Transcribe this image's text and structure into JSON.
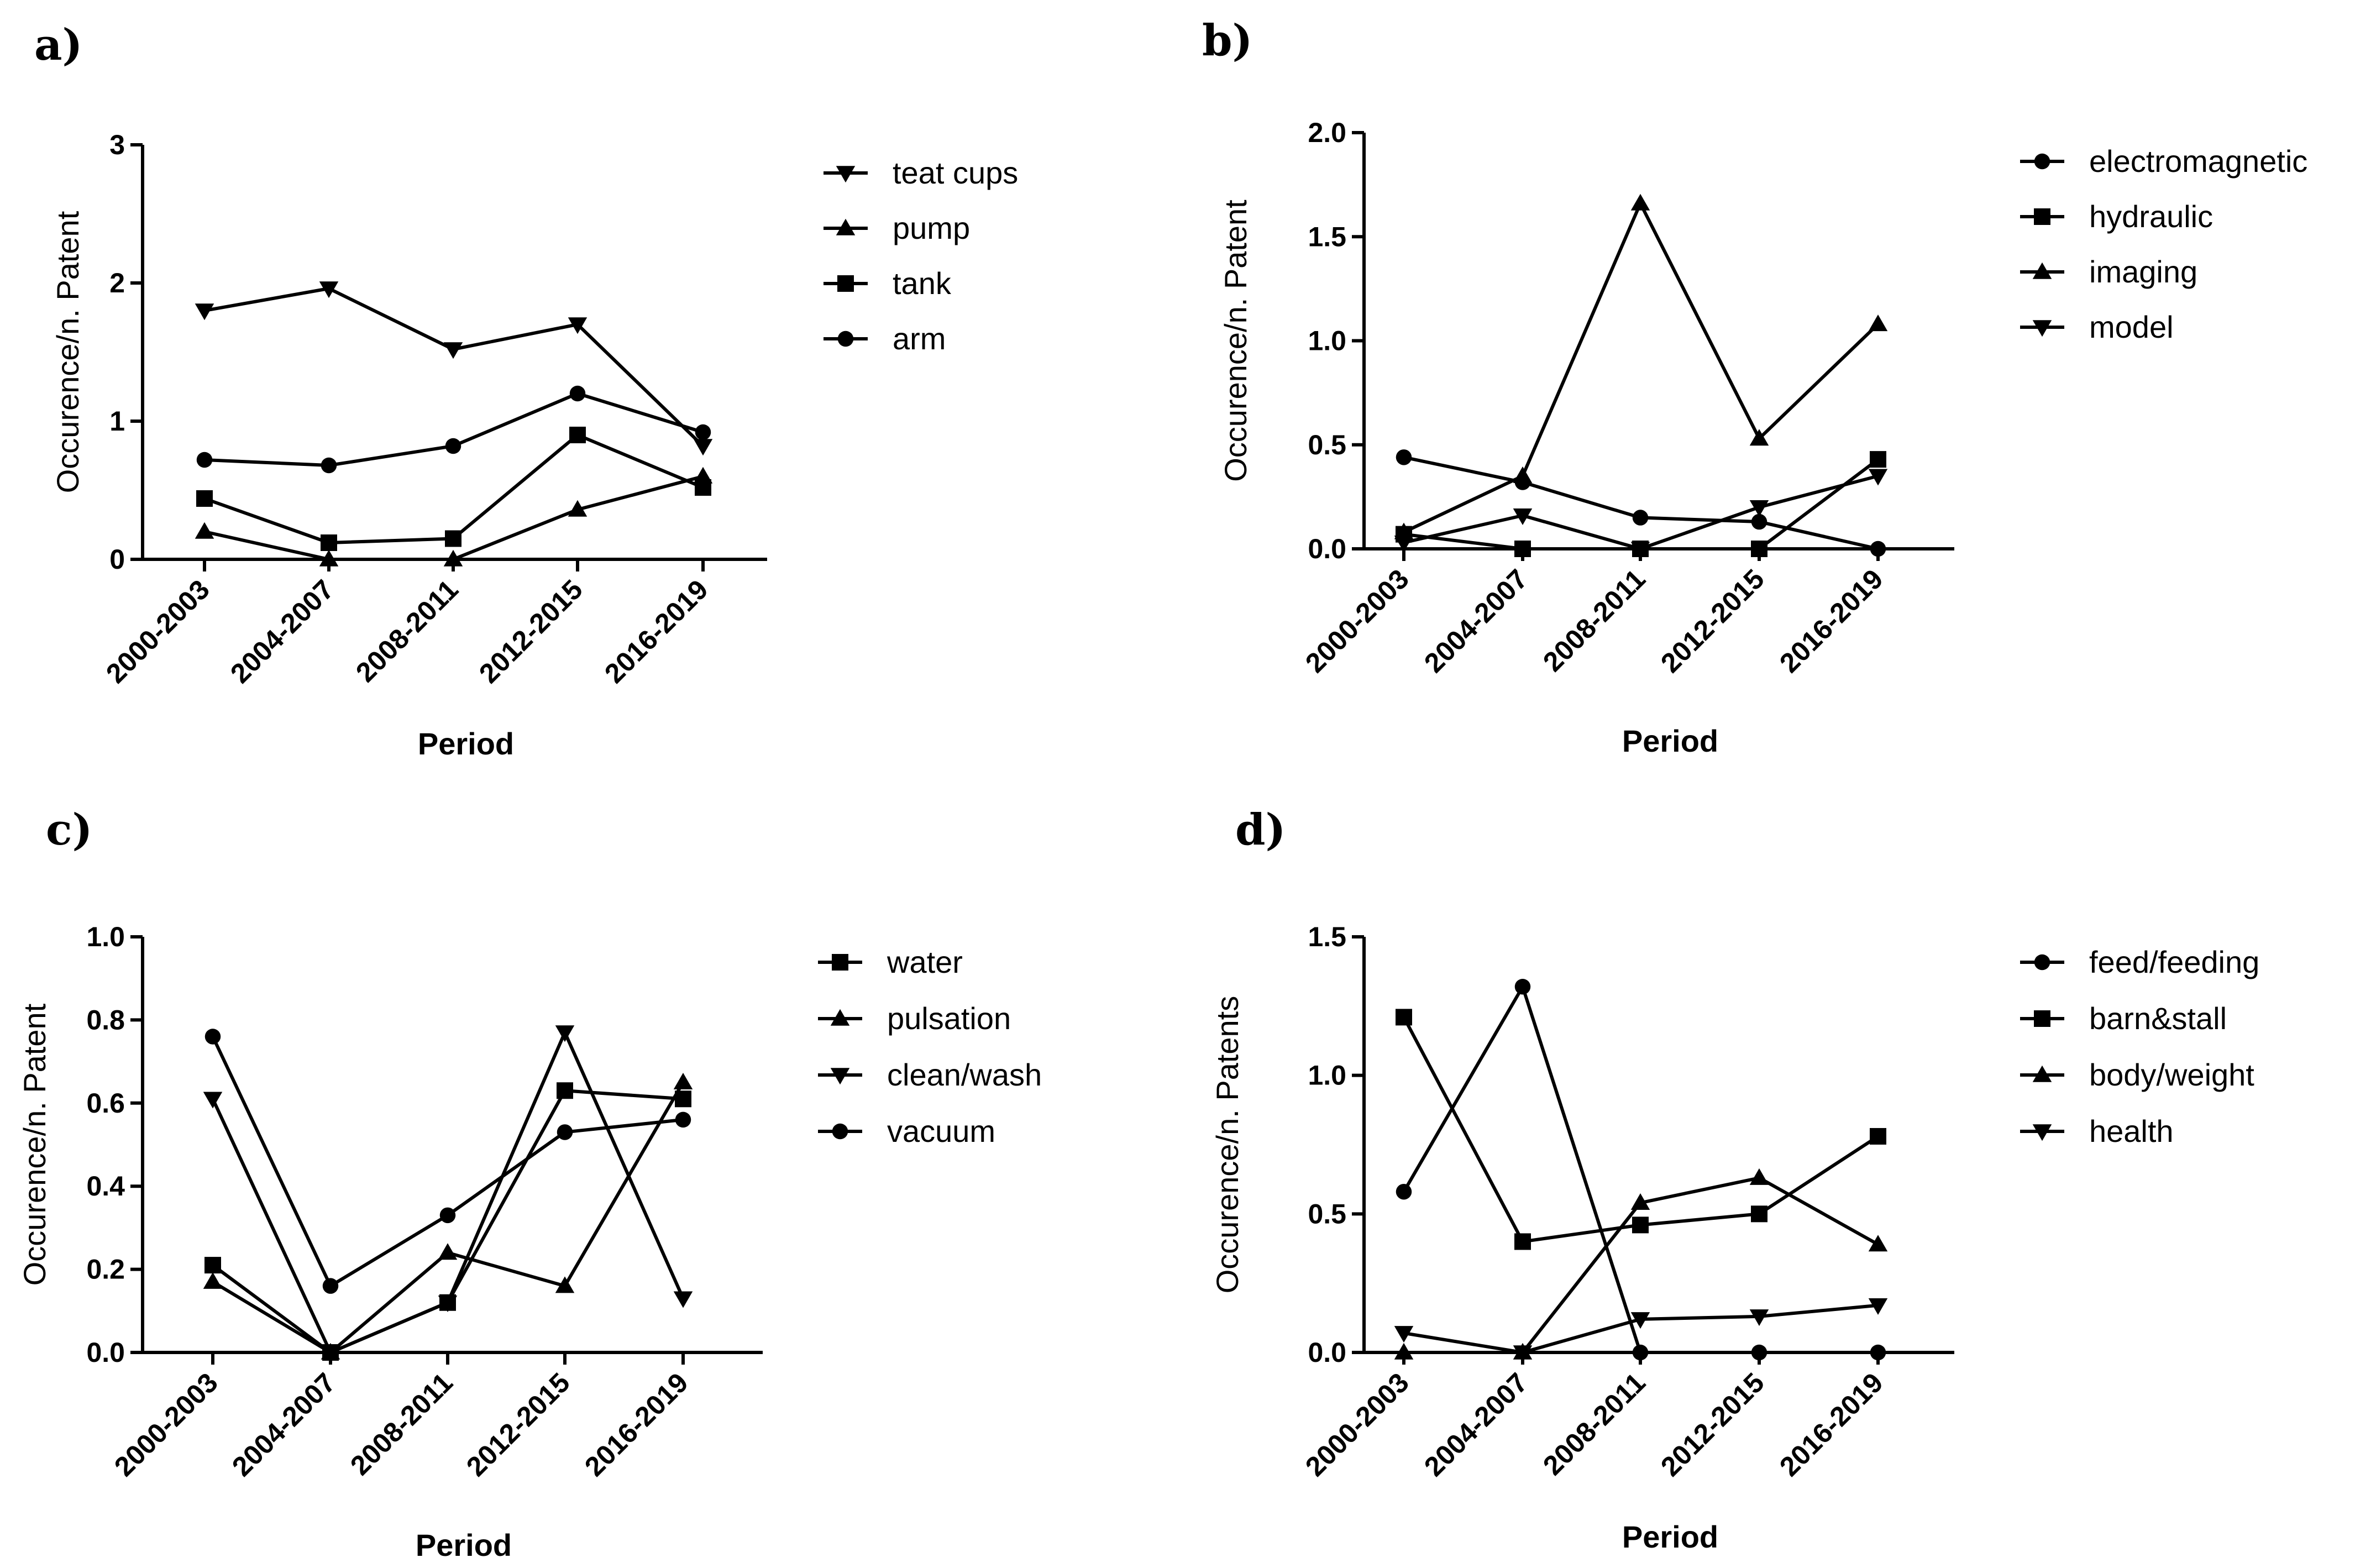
{
  "chart_data": [
    {
      "panel": "a)",
      "type": "line",
      "categories": [
        "2000-2003",
        "2004-2007",
        "2008-2011",
        "2012-2015",
        "2016-2019"
      ],
      "xlabel": "Period",
      "ylabel": "Occurence/n. Patent",
      "ylim": [
        0,
        3
      ],
      "yticks": [
        0,
        1,
        2,
        3
      ],
      "ytick_labels": [
        "0",
        "1",
        "2",
        "3"
      ],
      "legend_position": "right",
      "series": [
        {
          "name": "teat cups",
          "marker": "triangle-down",
          "values": [
            1.8,
            1.96,
            1.52,
            1.7,
            0.82
          ]
        },
        {
          "name": "pump",
          "marker": "triangle-up",
          "values": [
            0.2,
            0.0,
            0.0,
            0.36,
            0.6
          ]
        },
        {
          "name": "tank",
          "marker": "square",
          "values": [
            0.44,
            0.12,
            0.15,
            0.9,
            0.52
          ]
        },
        {
          "name": "arm",
          "marker": "circle",
          "values": [
            0.72,
            0.68,
            0.82,
            1.2,
            0.92
          ]
        }
      ]
    },
    {
      "panel": "b)",
      "type": "line",
      "categories": [
        "2000-2003",
        "2004-2007",
        "2008-2011",
        "2012-2015",
        "2016-2019"
      ],
      "xlabel": "Period",
      "ylabel": "Occurence/n. Patent",
      "ylim": [
        0,
        2.0
      ],
      "yticks": [
        0,
        0.5,
        1.0,
        1.5,
        2.0
      ],
      "ytick_labels": [
        "0.0",
        "0.5",
        "1.0",
        "1.5",
        "2.0"
      ],
      "legend_position": "right",
      "series": [
        {
          "name": "electromagnetic",
          "marker": "circle",
          "values": [
            0.44,
            0.32,
            0.15,
            0.13,
            0.0
          ]
        },
        {
          "name": "hydraulic",
          "marker": "square",
          "values": [
            0.07,
            0.0,
            0.0,
            0.0,
            0.43
          ]
        },
        {
          "name": "imaging",
          "marker": "triangle-up",
          "values": [
            0.08,
            0.35,
            1.66,
            0.53,
            1.08
          ]
        },
        {
          "name": "model",
          "marker": "triangle-down",
          "values": [
            0.03,
            0.16,
            0.0,
            0.2,
            0.35
          ]
        }
      ]
    },
    {
      "panel": "c)",
      "type": "line",
      "categories": [
        "2000-2003",
        "2004-2007",
        "2008-2011",
        "2012-2015",
        "2016-2019"
      ],
      "xlabel": "Period",
      "ylabel": "Occurence/n. Patent",
      "ylim": [
        0,
        1.0
      ],
      "yticks": [
        0,
        0.2,
        0.4,
        0.6,
        0.8,
        1.0
      ],
      "ytick_labels": [
        "0.0",
        "0.2",
        "0.4",
        "0.6",
        "0.8",
        "1.0"
      ],
      "legend_position": "right",
      "series": [
        {
          "name": "water",
          "marker": "square",
          "values": [
            0.21,
            0.0,
            0.12,
            0.63,
            0.61
          ]
        },
        {
          "name": "pulsation",
          "marker": "triangle-up",
          "values": [
            0.17,
            0.0,
            0.24,
            0.16,
            0.65
          ]
        },
        {
          "name": "clean/wash",
          "marker": "triangle-down",
          "values": [
            0.61,
            0.0,
            0.12,
            0.77,
            0.13
          ]
        },
        {
          "name": "vacuum",
          "marker": "circle",
          "values": [
            0.76,
            0.16,
            0.33,
            0.53,
            0.56
          ]
        }
      ]
    },
    {
      "panel": "d)",
      "type": "line",
      "categories": [
        "2000-2003",
        "2004-2007",
        "2008-2011",
        "2012-2015",
        "2016-2019"
      ],
      "xlabel": "Period",
      "ylabel": "Occurence/n. Patents",
      "ylim": [
        0,
        1.5
      ],
      "yticks": [
        0,
        0.5,
        1.0,
        1.5
      ],
      "ytick_labels": [
        "0.0",
        "0.5",
        "1.0",
        "1.5"
      ],
      "legend_position": "right",
      "series": [
        {
          "name": "feed/feeding",
          "marker": "circle",
          "values": [
            0.58,
            1.32,
            0.0,
            0.0,
            0.0
          ]
        },
        {
          "name": "barn&stall",
          "marker": "square",
          "values": [
            1.21,
            0.4,
            0.46,
            0.5,
            0.78
          ]
        },
        {
          "name": "body/weight",
          "marker": "triangle-up",
          "values": [
            0.0,
            0.0,
            0.54,
            0.63,
            0.39
          ]
        },
        {
          "name": "health",
          "marker": "triangle-down",
          "values": [
            0.07,
            0.0,
            0.12,
            0.13,
            0.17
          ]
        }
      ]
    }
  ]
}
